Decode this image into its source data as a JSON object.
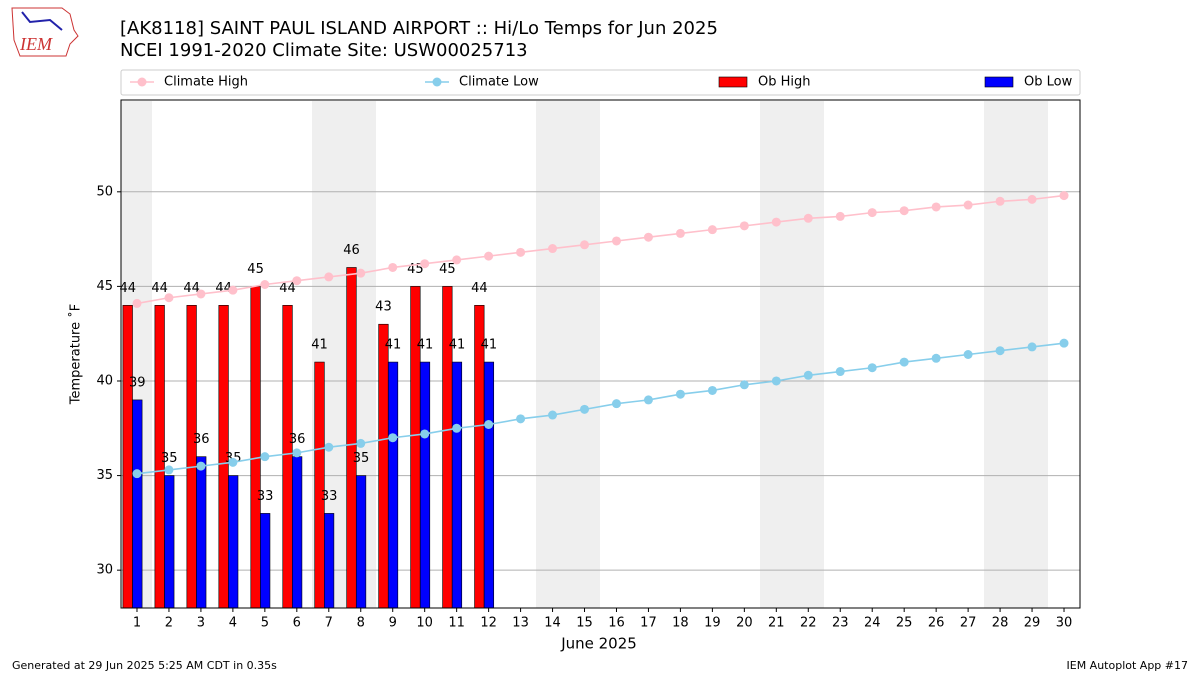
{
  "chart_data": {
    "type": "bar",
    "title": "[AK8118] SAINT PAUL ISLAND AIRPORT :: Hi/Lo Temps for Jun 2025",
    "subtitle": "NCEI 1991-2020 Climate Site: USW00025713",
    "xlabel": "June 2025",
    "ylabel": "Temperature ˚F",
    "footer_left": "Generated at 29 Jun 2025 5:25 AM CDT in 0.35s",
    "footer_right": "IEM Autoplot App #17",
    "logo_text": "IEM",
    "x": [
      1,
      2,
      3,
      4,
      5,
      6,
      7,
      8,
      9,
      10,
      11,
      12,
      13,
      14,
      15,
      16,
      17,
      18,
      19,
      20,
      21,
      22,
      23,
      24,
      25,
      26,
      27,
      28,
      29,
      30
    ],
    "xlim": [
      0.5,
      30.5
    ],
    "xticks": [
      1,
      2,
      3,
      4,
      5,
      6,
      7,
      8,
      9,
      10,
      11,
      12,
      13,
      14,
      15,
      16,
      17,
      18,
      19,
      20,
      21,
      22,
      23,
      24,
      25,
      26,
      27,
      28,
      29,
      30
    ],
    "ylim": [
      28,
      54.8
    ],
    "yticks": [
      30,
      35,
      40,
      45,
      50
    ],
    "grid": true,
    "series": [
      {
        "name": "Climate High",
        "type": "line",
        "color": "#ffc0cb",
        "values": [
          44.1,
          44.4,
          44.6,
          44.8,
          45.1,
          45.3,
          45.5,
          45.7,
          46.0,
          46.2,
          46.4,
          46.6,
          46.8,
          47.0,
          47.2,
          47.4,
          47.6,
          47.8,
          48.0,
          48.2,
          48.4,
          48.6,
          48.7,
          48.9,
          49.0,
          49.2,
          49.3,
          49.5,
          49.6,
          49.8
        ]
      },
      {
        "name": "Climate Low",
        "type": "line",
        "color": "#87ceeb",
        "values": [
          35.1,
          35.3,
          35.5,
          35.7,
          36.0,
          36.2,
          36.5,
          36.7,
          37.0,
          37.2,
          37.5,
          37.7,
          38.0,
          38.2,
          38.5,
          38.8,
          39.0,
          39.3,
          39.5,
          39.8,
          40.0,
          40.3,
          40.5,
          40.7,
          41.0,
          41.2,
          41.4,
          41.6,
          41.8,
          42.0
        ]
      },
      {
        "name": "Ob High",
        "type": "bar",
        "color": "#ff0000",
        "values": [
          44,
          44,
          44,
          44,
          45,
          44,
          41,
          46,
          43,
          45,
          45,
          44,
          null,
          null,
          null,
          null,
          null,
          null,
          null,
          null,
          null,
          null,
          null,
          null,
          null,
          null,
          null,
          null,
          null,
          null
        ]
      },
      {
        "name": "Ob Low",
        "type": "bar",
        "color": "#0000ff",
        "values": [
          39,
          35,
          36,
          35,
          33,
          36,
          33,
          35,
          41,
          41,
          41,
          41,
          null,
          null,
          null,
          null,
          null,
          null,
          null,
          null,
          null,
          null,
          null,
          null,
          null,
          null,
          null,
          null,
          null,
          null
        ]
      }
    ]
  }
}
